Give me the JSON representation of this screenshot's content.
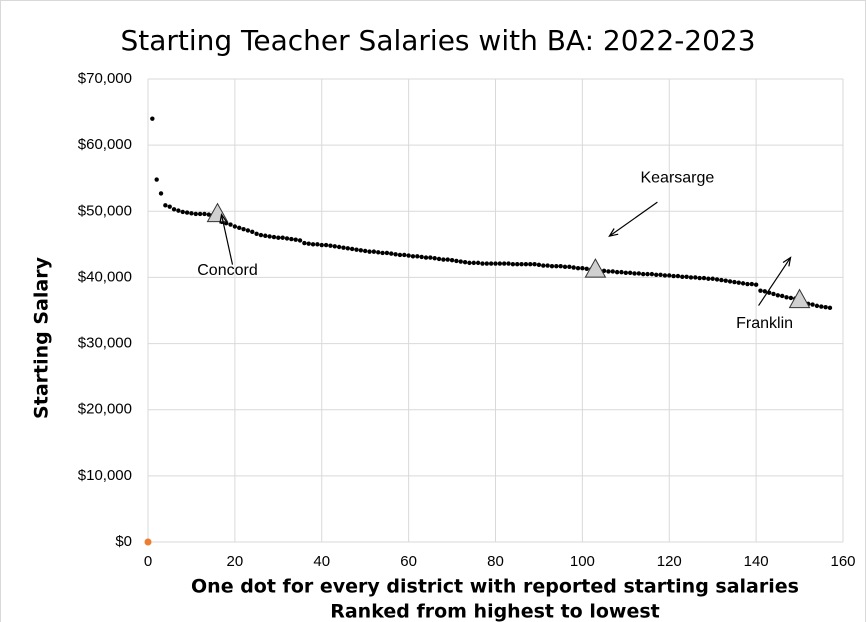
{
  "chart_data": {
    "type": "scatter",
    "title": "Starting Teacher Salaries with BA: 2022-2023",
    "y_label": "Starting Salary",
    "x_label": [
      "One dot for every district with reported starting salaries",
      "Ranked from highest to lowest"
    ],
    "xlim": [
      0,
      160
    ],
    "xticks": [
      0,
      20,
      40,
      60,
      80,
      100,
      120,
      140,
      160
    ],
    "ylim": [
      0,
      70000
    ],
    "yticks": [
      {
        "value": 0,
        "label": "$0"
      },
      {
        "value": 10000,
        "label": "$10,000"
      },
      {
        "value": 20000,
        "label": "$20,000"
      },
      {
        "value": 30000,
        "label": "$30,000"
      },
      {
        "value": 40000,
        "label": "$40,000"
      },
      {
        "value": 50000,
        "label": "$50,000"
      },
      {
        "value": 60000,
        "label": "$60,000"
      },
      {
        "value": 70000,
        "label": "$70,000"
      }
    ],
    "grid": true,
    "series": [
      {
        "color": "#000000",
        "x": [
          1,
          2,
          3,
          4,
          5,
          6,
          7,
          8,
          9,
          10,
          11,
          12,
          13,
          14,
          15,
          16,
          17,
          18,
          19,
          20,
          21,
          22,
          23,
          24,
          25,
          26,
          27,
          28,
          29,
          30,
          31,
          32,
          33,
          34,
          35,
          36,
          37,
          38,
          39,
          40,
          41,
          42,
          43,
          44,
          45,
          46,
          47,
          48,
          49,
          50,
          51,
          52,
          53,
          54,
          55,
          56,
          57,
          58,
          59,
          60,
          61,
          62,
          63,
          64,
          65,
          66,
          67,
          68,
          69,
          70,
          71,
          72,
          73,
          74,
          75,
          76,
          77,
          78,
          79,
          80,
          81,
          82,
          83,
          84,
          85,
          86,
          87,
          88,
          89,
          90,
          91,
          92,
          93,
          94,
          95,
          96,
          97,
          98,
          99,
          100,
          101,
          102,
          103,
          104,
          105,
          106,
          107,
          108,
          109,
          110,
          111,
          112,
          113,
          114,
          115,
          116,
          117,
          118,
          119,
          120,
          121,
          122,
          123,
          124,
          125,
          126,
          127,
          128,
          129,
          130,
          131,
          132,
          133,
          134,
          135,
          136,
          137,
          138,
          139,
          140,
          141,
          142,
          143,
          144,
          145,
          146,
          147,
          148,
          149,
          150,
          151,
          152,
          153,
          154,
          155,
          156,
          157
        ],
        "values": [
          64000,
          54800,
          52700,
          50900,
          50700,
          50300,
          50100,
          49900,
          49800,
          49700,
          49600,
          49600,
          49600,
          49500,
          49500,
          49500,
          48400,
          48200,
          48000,
          47700,
          47500,
          47300,
          47100,
          46900,
          46600,
          46400,
          46300,
          46200,
          46100,
          46000,
          46000,
          45900,
          45800,
          45700,
          45600,
          45200,
          45100,
          45000,
          45000,
          44900,
          44900,
          44800,
          44700,
          44600,
          44500,
          44400,
          44300,
          44200,
          44100,
          44000,
          43900,
          43900,
          43800,
          43700,
          43700,
          43600,
          43500,
          43400,
          43400,
          43300,
          43200,
          43200,
          43100,
          43000,
          43000,
          42900,
          42800,
          42700,
          42700,
          42600,
          42500,
          42400,
          42300,
          42200,
          42200,
          42200,
          42100,
          42100,
          42100,
          42100,
          42100,
          42100,
          42100,
          42000,
          42000,
          42000,
          42000,
          42000,
          42000,
          41900,
          41800,
          41800,
          41700,
          41700,
          41700,
          41600,
          41600,
          41500,
          41400,
          41400,
          41300,
          41200,
          41100,
          41000,
          41000,
          40900,
          40900,
          40800,
          40800,
          40700,
          40700,
          40600,
          40600,
          40500,
          40500,
          40500,
          40400,
          40400,
          40300,
          40300,
          40200,
          40200,
          40100,
          40100,
          40000,
          40000,
          39900,
          39900,
          39800,
          39800,
          39700,
          39600,
          39500,
          39400,
          39300,
          39200,
          39100,
          39000,
          39000,
          38900,
          38000,
          37900,
          37700,
          37500,
          37300,
          37200,
          37000,
          36900,
          36800,
          36500,
          36200,
          36000,
          35900,
          35700,
          35600,
          35500,
          35400
        ]
      },
      {
        "color": "#ed7d31",
        "x": [
          0
        ],
        "values": [
          0
        ]
      }
    ],
    "annotations": [
      {
        "text": "Concord",
        "x": 16,
        "y": 49500
      },
      {
        "text": "Kearsarge",
        "x": 103,
        "y": 41100
      },
      {
        "text": "Franklin",
        "x": 150,
        "y": 36500
      }
    ]
  }
}
